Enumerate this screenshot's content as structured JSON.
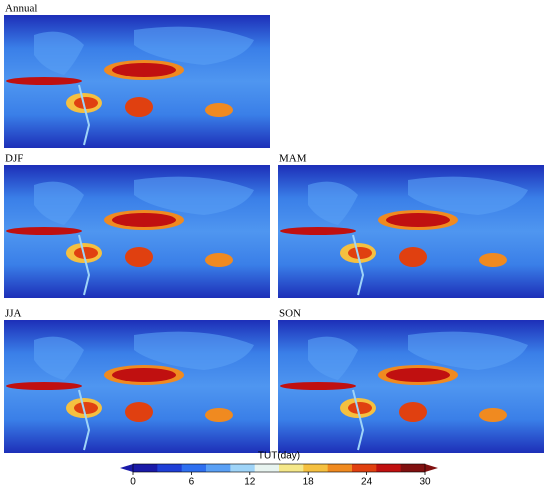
{
  "panels": [
    {
      "label": "Annual"
    },
    {
      "label": "DJF"
    },
    {
      "label": "MAM"
    },
    {
      "label": "JJA"
    },
    {
      "label": "SON"
    }
  ],
  "colorbar": {
    "title": "TUT(day)",
    "lim": [
      0,
      30
    ],
    "ticks": [
      0,
      6,
      12,
      18,
      24,
      30
    ],
    "colors": [
      "#1a1aa8",
      "#1f3fd6",
      "#2f6ff0",
      "#5aa0f5",
      "#9fd4f8",
      "#e8f4f0",
      "#f5e88a",
      "#f5c040",
      "#f08a20",
      "#e04010",
      "#c01010",
      "#801010"
    ]
  }
}
